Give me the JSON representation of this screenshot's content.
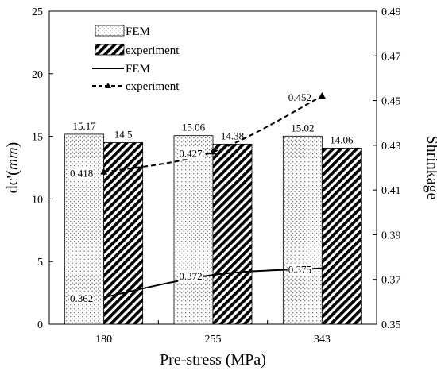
{
  "chart_data": {
    "type": "bar",
    "categories": [
      "180",
      "255",
      "343"
    ],
    "xlabel": "Pre-stress (MPa)",
    "ylabel_left": "dc'(mm)",
    "ylabel_left_main": "dc'(",
    "ylabel_left_unit": "mm",
    "ylabel_left_close": ")",
    "ylabel_right": "Shrinkage",
    "ylim_left": [
      0,
      25
    ],
    "ylim_right": [
      0.35,
      0.49
    ],
    "yticks_left": [
      "0",
      "5",
      "10",
      "15",
      "20",
      "25"
    ],
    "yticks_right": [
      "0.35",
      "0.37",
      "0.39",
      "0.41",
      "0.43",
      "0.45",
      "0.47",
      "0.49"
    ],
    "grid": false,
    "legend_position": "top-left",
    "bar_series": [
      {
        "name": "FEM",
        "values": [
          15.17,
          15.06,
          15.02
        ],
        "value_labels": [
          "15.17",
          "15.06",
          "15.02"
        ],
        "pattern": "dots"
      },
      {
        "name": "experiment",
        "values": [
          14.5,
          14.38,
          14.06
        ],
        "value_labels": [
          "14.5",
          "14.38",
          "14.06"
        ],
        "pattern": "diagonal-hatch"
      }
    ],
    "line_series": [
      {
        "name": "FEM",
        "axis": "right",
        "values": [
          0.362,
          0.372,
          0.375
        ],
        "value_labels": [
          "0.362",
          "0.372",
          "0.375"
        ],
        "style": "solid"
      },
      {
        "name": "experiment",
        "axis": "right",
        "values": [
          0.418,
          0.427,
          0.452
        ],
        "value_labels": [
          "0.418",
          "0.427",
          "0.452"
        ],
        "style": "dashed",
        "marker": "triangle"
      }
    ]
  }
}
